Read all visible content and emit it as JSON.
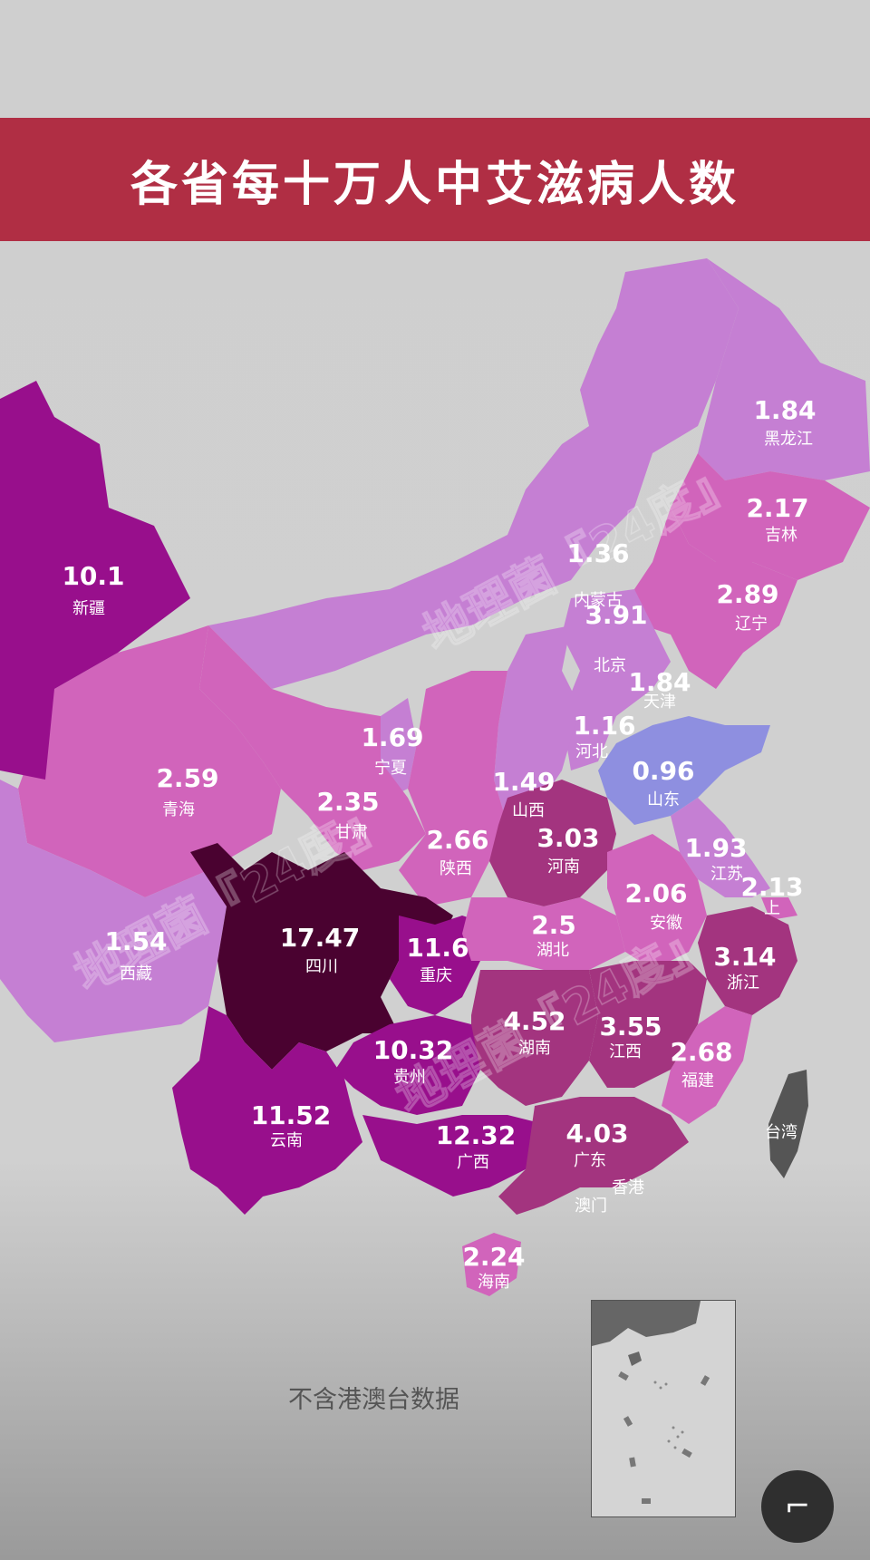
{
  "title": "各省每十万人中艾滋病人数",
  "note": "不含港澳台数据",
  "watermark": "地理菌『24度』",
  "taiwan_label": "台湾",
  "hk_label": "香港",
  "macau_label": "澳门",
  "shanghai_label": "上",
  "fab_icon": "close-icon",
  "fab_suffix": "0",
  "colors": {
    "banner": "#b02e44",
    "lowest": "#8e8fe0",
    "low": "#c57fd3",
    "medium": "#d164bb",
    "high": "#a3347f",
    "very_high": "#980f8c",
    "highest": "#4a0230",
    "taiwan": "#555555"
  },
  "provinces": [
    {
      "name": "新疆",
      "value": "10.1"
    },
    {
      "name": "西藏",
      "value": "1.54"
    },
    {
      "name": "青海",
      "value": "2.59"
    },
    {
      "name": "甘肃",
      "value": "2.35"
    },
    {
      "name": "宁夏",
      "value": "1.69"
    },
    {
      "name": "内蒙古",
      "value": "1.36"
    },
    {
      "name": "黑龙江",
      "value": "1.84"
    },
    {
      "name": "吉林",
      "value": "2.17"
    },
    {
      "name": "辽宁",
      "value": "2.89"
    },
    {
      "name": "北京",
      "value": "3.91"
    },
    {
      "name": "天津",
      "value": "1.84"
    },
    {
      "name": "河北",
      "value": "1.16"
    },
    {
      "name": "山西",
      "value": "1.49"
    },
    {
      "name": "山东",
      "value": "0.96"
    },
    {
      "name": "陕西",
      "value": "2.66"
    },
    {
      "name": "河南",
      "value": "3.03"
    },
    {
      "name": "江苏",
      "value": "1.93"
    },
    {
      "name": "上海",
      "value": "2.13"
    },
    {
      "name": "安徽",
      "value": "2.06"
    },
    {
      "name": "湖北",
      "value": "2.5"
    },
    {
      "name": "四川",
      "value": "17.47"
    },
    {
      "name": "重庆",
      "value": "11.6"
    },
    {
      "name": "浙江",
      "value": "3.14"
    },
    {
      "name": "湖南",
      "value": "4.52"
    },
    {
      "name": "江西",
      "value": "3.55"
    },
    {
      "name": "贵州",
      "value": "10.32"
    },
    {
      "name": "福建",
      "value": "2.68"
    },
    {
      "name": "云南",
      "value": "11.52"
    },
    {
      "name": "广西",
      "value": "12.32"
    },
    {
      "name": "广东",
      "value": "4.03"
    },
    {
      "name": "海南",
      "value": "2.24"
    }
  ]
}
